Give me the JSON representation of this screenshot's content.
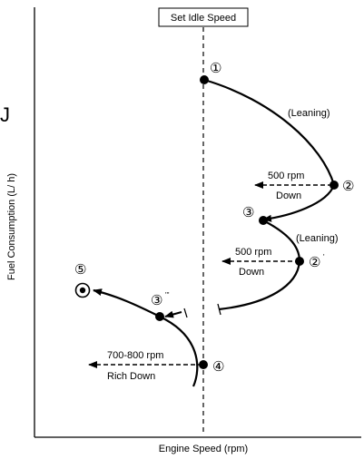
{
  "x_axis_label": "Engine Speed (rpm)",
  "y_axis_label": "Fuel Consumption (L/ h)",
  "idle_label": "Set Idle Speed",
  "stray_mark": "J",
  "annotations": {
    "leaning_1": "(Leaning)",
    "leaning_2": "(Leaning)",
    "drop_1_rpm": "500 rpm",
    "drop_1_dir": "Down",
    "drop_2_rpm": "500 rpm",
    "drop_2_dir": "Down",
    "drop_3_rpm": "700-800 rpm",
    "drop_3_dir": "Rich Down"
  },
  "points": {
    "p1": "①",
    "p2": "②",
    "p2_prime_num": "②",
    "p2_prime_mark": "'",
    "p3": "③",
    "p3_triple_num": "③",
    "p3_triple_mark": "'''",
    "p4": "④",
    "p5": "⑤"
  },
  "colors": {
    "ink": "#000000",
    "background": "#ffffff"
  }
}
